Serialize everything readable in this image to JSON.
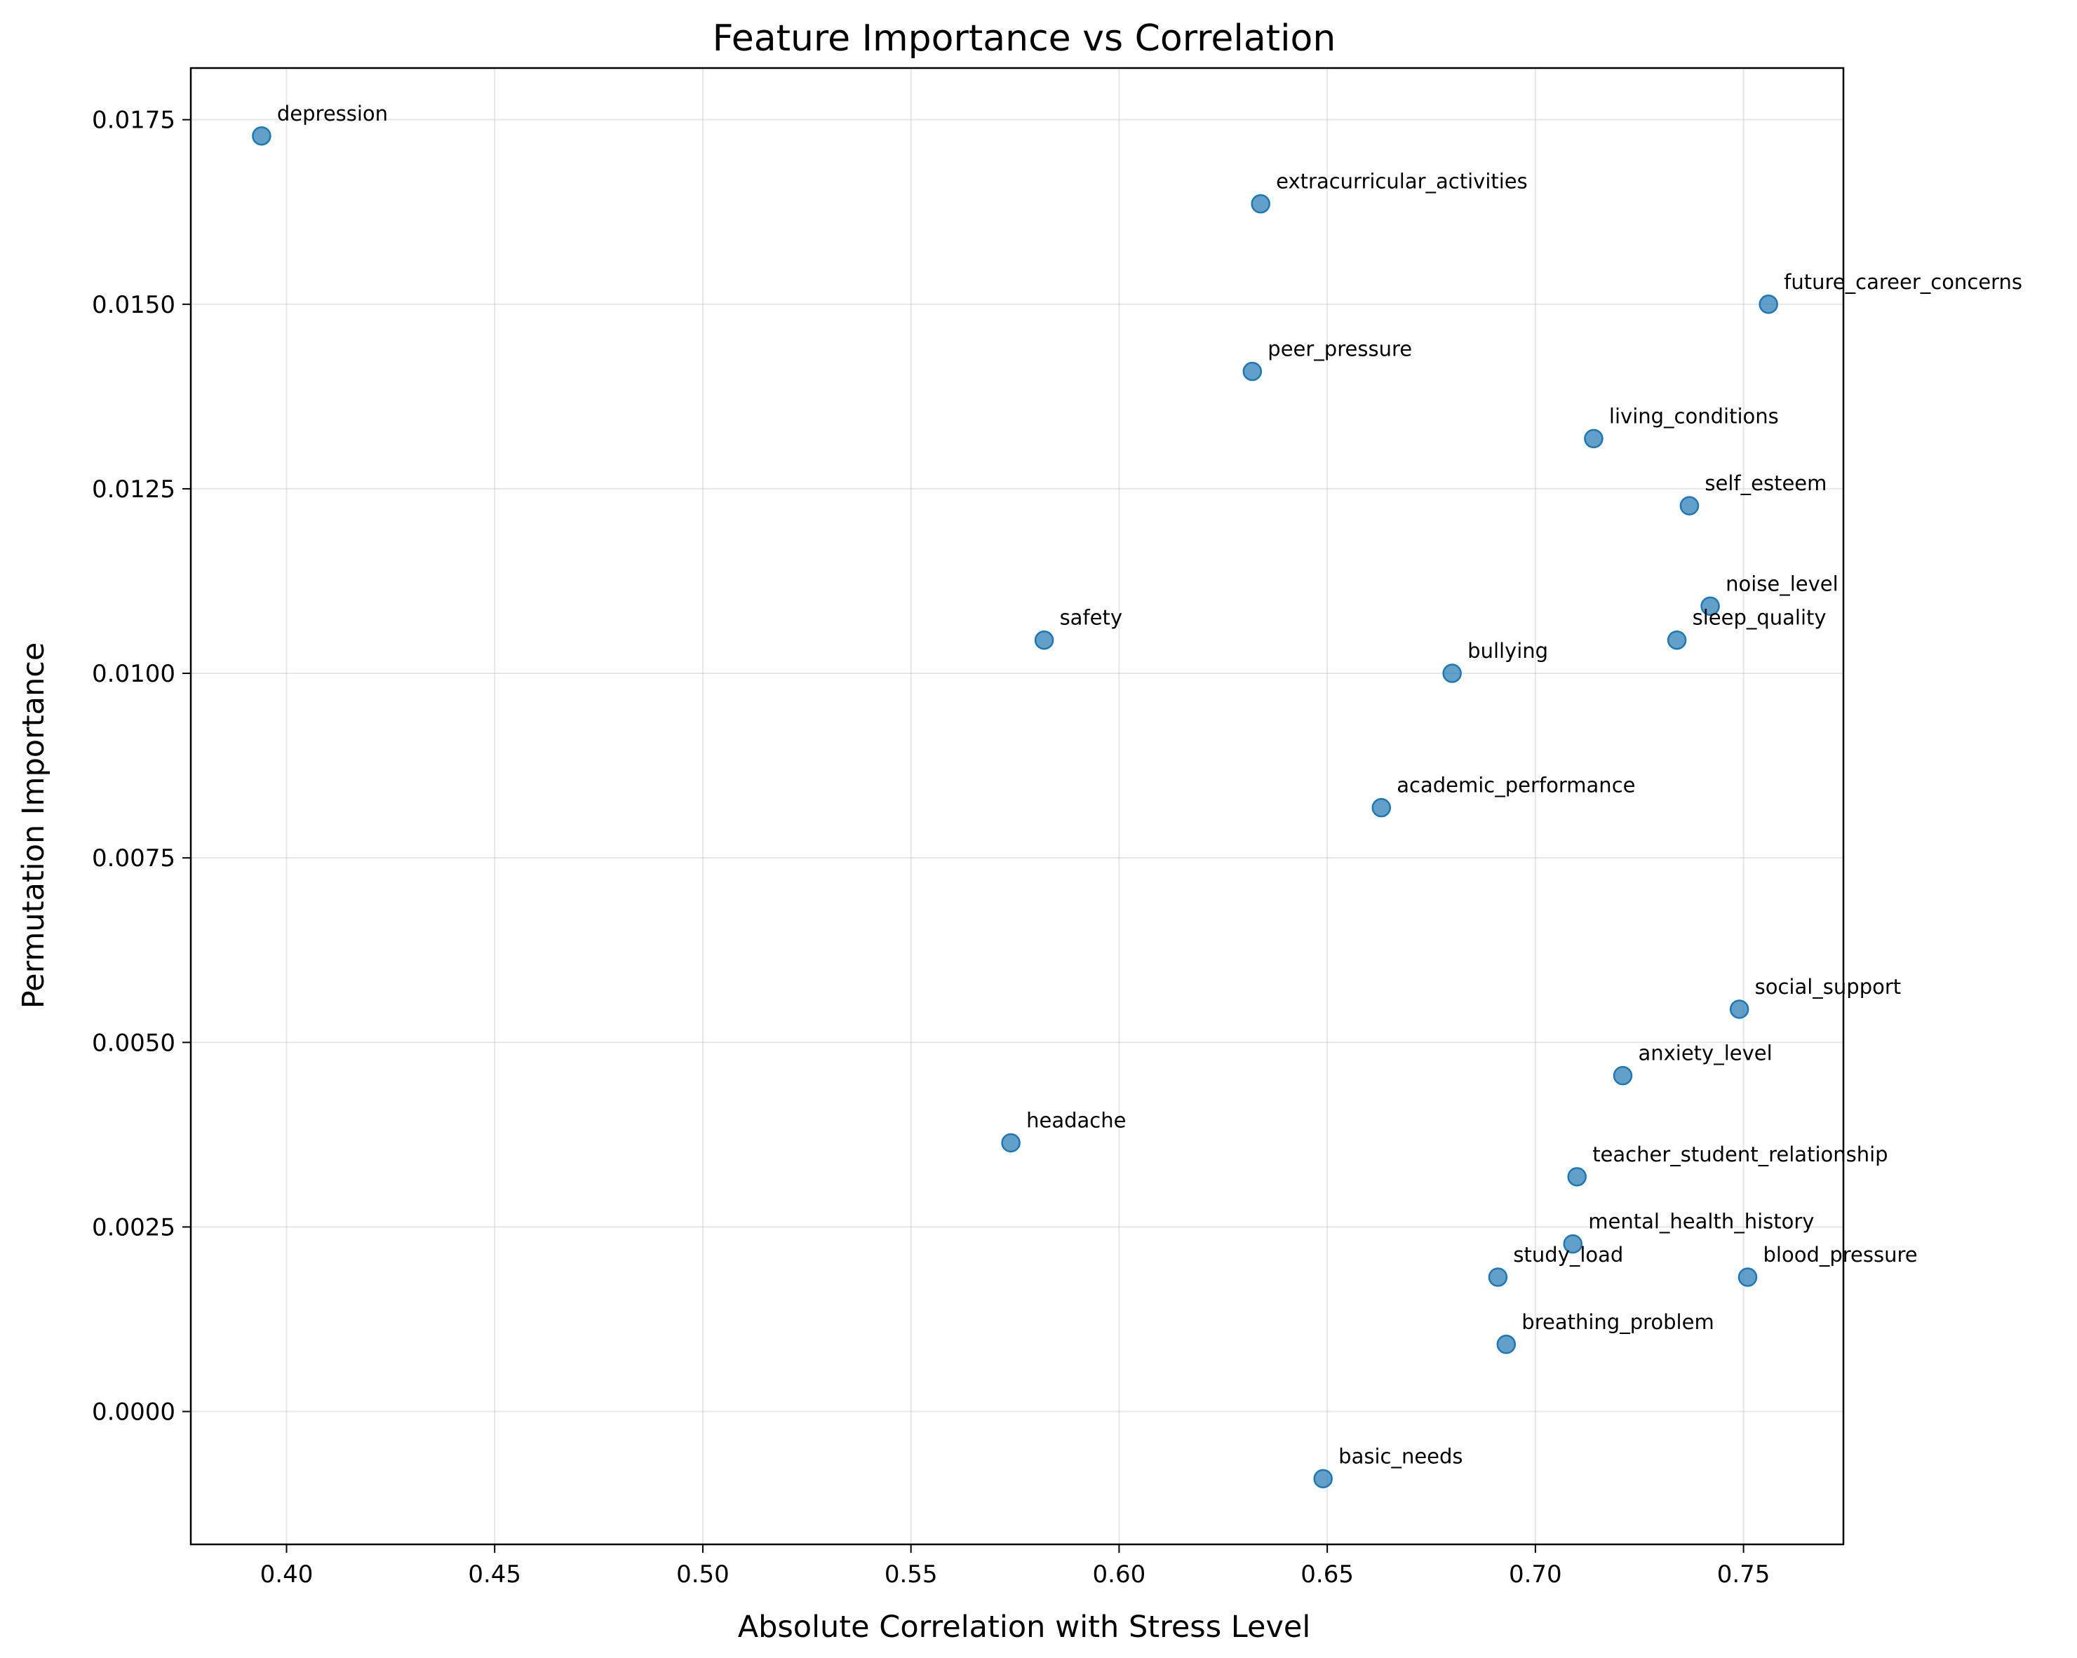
{
  "chart_data": {
    "type": "scatter",
    "title": "Feature Importance vs Correlation",
    "xlabel": "Absolute Correlation with Stress Level",
    "ylabel": "Permutation Importance",
    "xlim": [
      0.377,
      0.774
    ],
    "ylim": [
      -0.0018,
      0.0182
    ],
    "xticks": [
      "0.40",
      "0.45",
      "0.50",
      "0.55",
      "0.60",
      "0.65",
      "0.70",
      "0.75"
    ],
    "yticks": [
      "0.0000",
      "0.0025",
      "0.0050",
      "0.0075",
      "0.0100",
      "0.0125",
      "0.0150",
      "0.0175"
    ],
    "grid": true,
    "marker_color": "#1f77b4",
    "points": [
      {
        "label": "depression",
        "x": 0.394,
        "y": 0.01728
      },
      {
        "label": "extracurricular_activities",
        "x": 0.634,
        "y": 0.01636
      },
      {
        "label": "future_career_concerns",
        "x": 0.756,
        "y": 0.015
      },
      {
        "label": "peer_pressure",
        "x": 0.632,
        "y": 0.01409
      },
      {
        "label": "living_conditions",
        "x": 0.714,
        "y": 0.01318
      },
      {
        "label": "self_esteem",
        "x": 0.737,
        "y": 0.01227
      },
      {
        "label": "noise_level",
        "x": 0.742,
        "y": 0.01091
      },
      {
        "label": "sleep_quality",
        "x": 0.734,
        "y": 0.01045
      },
      {
        "label": "safety",
        "x": 0.582,
        "y": 0.01045
      },
      {
        "label": "bullying",
        "x": 0.68,
        "y": 0.01
      },
      {
        "label": "academic_performance",
        "x": 0.663,
        "y": 0.00818
      },
      {
        "label": "social_support",
        "x": 0.749,
        "y": 0.00545
      },
      {
        "label": "anxiety_level",
        "x": 0.721,
        "y": 0.00455
      },
      {
        "label": "headache",
        "x": 0.574,
        "y": 0.00364
      },
      {
        "label": "teacher_student_relationship",
        "x": 0.71,
        "y": 0.00318
      },
      {
        "label": "mental_health_history",
        "x": 0.709,
        "y": 0.00227
      },
      {
        "label": "study_load",
        "x": 0.691,
        "y": 0.00182
      },
      {
        "label": "blood_pressure",
        "x": 0.751,
        "y": 0.00182
      },
      {
        "label": "breathing_problem",
        "x": 0.693,
        "y": 0.00091
      },
      {
        "label": "basic_needs",
        "x": 0.649,
        "y": -0.00091
      }
    ]
  }
}
